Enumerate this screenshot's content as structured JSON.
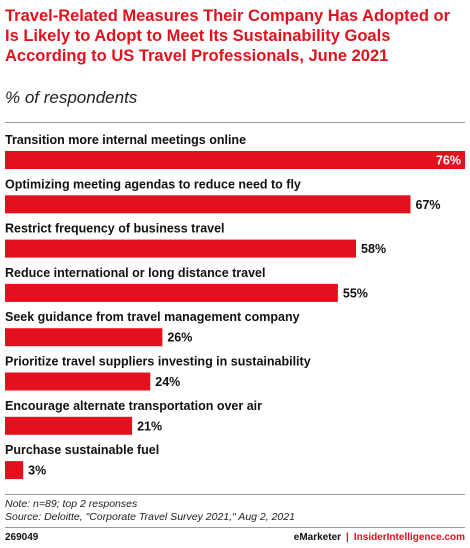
{
  "header": {
    "title": "Travel-Related Measures Their Company Has Adopted or Is Likely to Adopt to Meet Its Sustainability Goals According to US Travel Professionals, June 2021",
    "subtitle": "% of respondents"
  },
  "chart_data": {
    "type": "bar",
    "orientation": "horizontal",
    "categories": [
      "Transition more internal meetings online",
      "Optimizing meeting agendas to reduce need to fly",
      "Restrict frequency of business travel",
      "Reduce international or long distance travel",
      "Seek guidance from travel management company",
      "Prioritize travel suppliers investing in sustainability",
      "Encourage alternate transportation over air",
      "Purchase sustainable fuel"
    ],
    "values": [
      76,
      67,
      58,
      55,
      26,
      24,
      21,
      3
    ],
    "value_labels": [
      "76%",
      "67%",
      "58%",
      "55%",
      "26%",
      "24%",
      "21%",
      "3%"
    ],
    "xlim": [
      0,
      76
    ],
    "bar_color": "#e2111d",
    "grid": false,
    "legend": "none"
  },
  "footer": {
    "note": "Note: n=89; top 2 responses",
    "source": "Source: Deloitte, \"Corporate Travel Survey 2021,\" Aug 2, 2021",
    "chart_id": "269049",
    "brand_left": "eMarketer",
    "brand_sep": "|",
    "brand_right": "InsiderIntelligence.com"
  }
}
